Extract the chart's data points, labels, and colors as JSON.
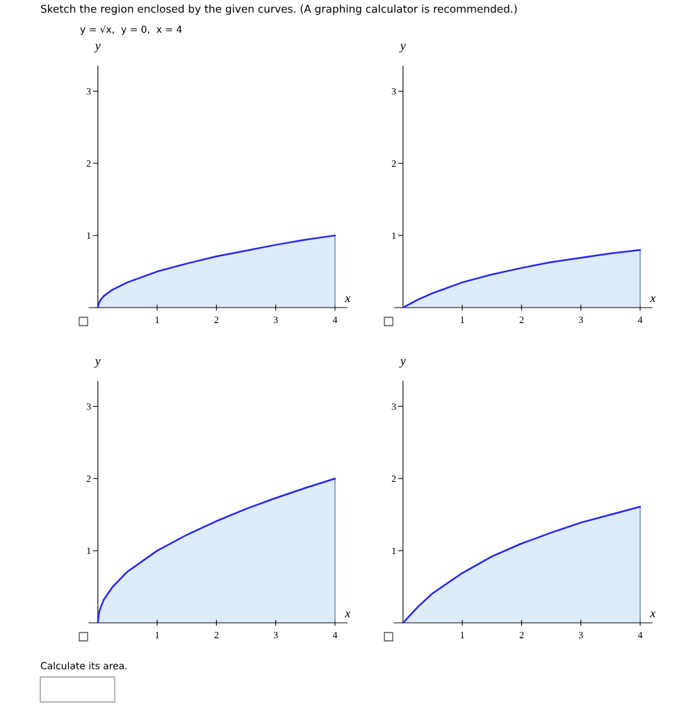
{
  "chart_data": [
    {
      "type": "area",
      "title": "Sketch the region enclosed by the given curves. (A graphing calculator is recommended.)",
      "subtitle": "y = √x,  y = 0,  x = 4",
      "xlabel": "x",
      "ylabel": "y",
      "xlim": [
        -0.15,
        4.2
      ],
      "ylim": [
        0,
        3.35
      ],
      "xticks": [
        1,
        2,
        3,
        4
      ],
      "yticks": [
        1,
        2,
        3
      ],
      "grid": false,
      "legend": false,
      "series": [
        {
          "color": "#2828f0",
          "x": [
            0,
            0.02,
            0.05,
            0.1,
            0.25,
            0.5,
            1,
            1.5,
            2,
            2.5,
            3,
            3.5,
            4
          ],
          "values": [
            0,
            0.07,
            0.11,
            0.16,
            0.25,
            0.35,
            0.5,
            0.61,
            0.71,
            0.79,
            0.87,
            0.94,
            1.0
          ]
        }
      ]
    },
    {
      "type": "area",
      "xlabel": "x",
      "ylabel": "y",
      "xlim": [
        -0.15,
        4.2
      ],
      "ylim": [
        0,
        3.35
      ],
      "xticks": [
        1,
        2,
        3,
        4
      ],
      "yticks": [
        1,
        2,
        3
      ],
      "grid": false,
      "legend": false,
      "series": [
        {
          "color": "#2828f0",
          "x": [
            0,
            0.25,
            0.5,
            1,
            1.5,
            2,
            2.5,
            3,
            3.5,
            4
          ],
          "values": [
            0,
            0.11,
            0.2,
            0.35,
            0.46,
            0.55,
            0.63,
            0.69,
            0.75,
            0.8
          ]
        }
      ]
    },
    {
      "type": "area",
      "xlabel": "x",
      "ylabel": "y",
      "xlim": [
        -0.15,
        4.2
      ],
      "ylim": [
        0,
        3.35
      ],
      "xticks": [
        1,
        2,
        3,
        4
      ],
      "yticks": [
        1,
        2,
        3
      ],
      "grid": false,
      "legend": false,
      "annotations": [
        "Calculate its area."
      ],
      "series": [
        {
          "color": "#2828f0",
          "x": [
            0,
            0.02,
            0.05,
            0.1,
            0.25,
            0.5,
            1,
            1.5,
            2,
            2.5,
            3,
            3.5,
            4
          ],
          "values": [
            0,
            0.14,
            0.22,
            0.32,
            0.5,
            0.71,
            1.0,
            1.22,
            1.41,
            1.58,
            1.73,
            1.87,
            2.0
          ]
        }
      ]
    },
    {
      "type": "area",
      "xlabel": "x",
      "ylabel": "y",
      "xlim": [
        -0.15,
        4.2
      ],
      "ylim": [
        0,
        3.35
      ],
      "xticks": [
        1,
        2,
        3,
        4
      ],
      "yticks": [
        1,
        2,
        3
      ],
      "grid": false,
      "legend": false,
      "series": [
        {
          "color": "#2828f0",
          "x": [
            0,
            0.25,
            0.5,
            1,
            1.5,
            2,
            2.5,
            3,
            3.5,
            4
          ],
          "values": [
            0,
            0.22,
            0.41,
            0.69,
            0.92,
            1.1,
            1.25,
            1.39,
            1.5,
            1.61
          ]
        }
      ]
    }
  ]
}
